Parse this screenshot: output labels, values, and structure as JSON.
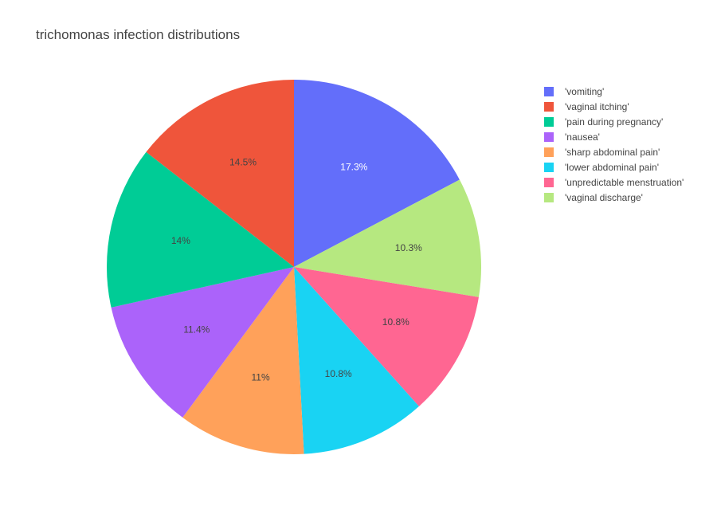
{
  "chart_data": {
    "type": "pie",
    "title": "trichomonas infection distributions",
    "categories": [
      "'vomiting'",
      "'vaginal itching'",
      "'pain during pregnancy'",
      "'nausea'",
      "'sharp abdominal pain'",
      "'lower abdominal pain'",
      "'unpredictable menstruation'",
      "'vaginal discharge'"
    ],
    "legend_order": [
      "'vomiting'",
      "'vaginal itching'",
      "'pain during pregnancy'",
      "'nausea'",
      "'sharp abdominal pain'",
      "'lower abdominal pain'",
      "'unpredictable menstruation'",
      "'vaginal discharge'"
    ],
    "slice_order": [
      "'vomiting'",
      "'vaginal discharge'",
      "'unpredictable menstruation'",
      "'lower abdominal pain'",
      "'sharp abdominal pain'",
      "'nausea'",
      "'pain during pregnancy'",
      "'vaginal itching'"
    ],
    "values": [
      17.3,
      14.5,
      14,
      11.4,
      11,
      10.8,
      10.8,
      10.3
    ],
    "labels": [
      "17.3%",
      "14.5%",
      "14%",
      "11.4%",
      "11%",
      "10.8%",
      "10.8%",
      "10.3%"
    ],
    "colors": [
      "#636efa",
      "#ef553b",
      "#00cc96",
      "#ab63fa",
      "#ffa15a",
      "#19d3f3",
      "#ff6692",
      "#b6e880"
    ],
    "label_colors": [
      "#ffffff",
      "#444444",
      "#444444",
      "#444444",
      "#444444",
      "#444444",
      "#444444",
      "#444444"
    ],
    "start_angle_deg": 0,
    "direction": "clockwise",
    "legend_position": "top-right"
  }
}
